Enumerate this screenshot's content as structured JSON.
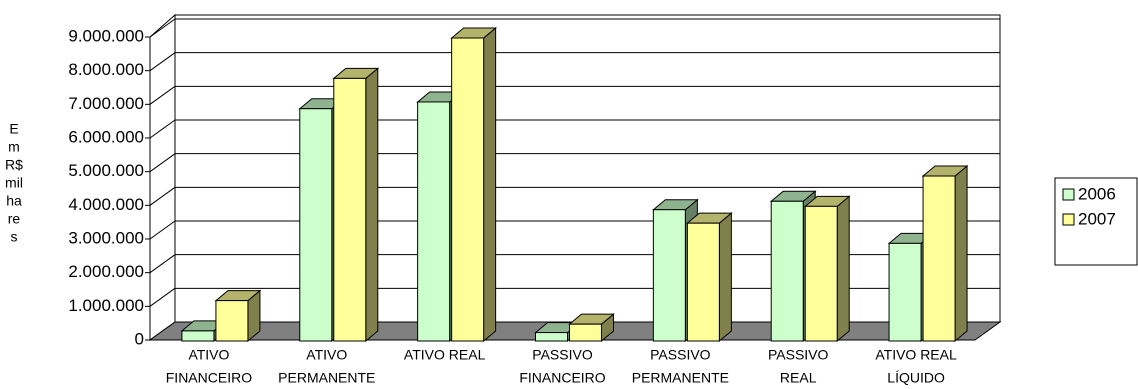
{
  "chart_data": {
    "type": "bar3d",
    "ylabel_lines": [
      "E",
      "m",
      "R$",
      "mil",
      "ha",
      "re",
      "s"
    ],
    "categories": [
      [
        "ATIVO",
        "FINANCEIRO"
      ],
      [
        "ATIVO",
        "PERMANENTE"
      ],
      [
        "ATIVO REAL"
      ],
      [
        "PASSIVO",
        "FINANCEIRO"
      ],
      [
        "PASSIVO",
        "PERMANENTE"
      ],
      [
        "PASSIVO",
        "REAL"
      ],
      [
        "ATIVO REAL",
        "LÍQUIDO"
      ]
    ],
    "series": [
      {
        "name": "2006",
        "color": "#ccffcc",
        "values": [
          300000,
          6900000,
          7100000,
          250000,
          3900000,
          4150000,
          2900000
        ]
      },
      {
        "name": "2007",
        "color": "#ffff99",
        "values": [
          1200000,
          7800000,
          9000000,
          500000,
          3500000,
          4000000,
          4900000
        ]
      }
    ],
    "ylim": [
      0,
      9000000
    ],
    "yticks": [
      0,
      {
        "value": 1000000,
        "label": "1.000.000"
      },
      {
        "value": 2000000,
        "label": "2.000.000"
      },
      {
        "value": 3000000,
        "label": "3.000.000"
      },
      {
        "value": 4000000,
        "label": "4.000.000"
      },
      {
        "value": 5000000,
        "label": "5.000.000"
      },
      {
        "value": 6000000,
        "label": "6.000.000"
      },
      {
        "value": 7000000,
        "label": "7.000.000"
      },
      {
        "value": 8000000,
        "label": "8.000.000"
      },
      {
        "value": 9000000,
        "label": "9.000.000"
      }
    ],
    "grid": true,
    "legend": "right"
  }
}
